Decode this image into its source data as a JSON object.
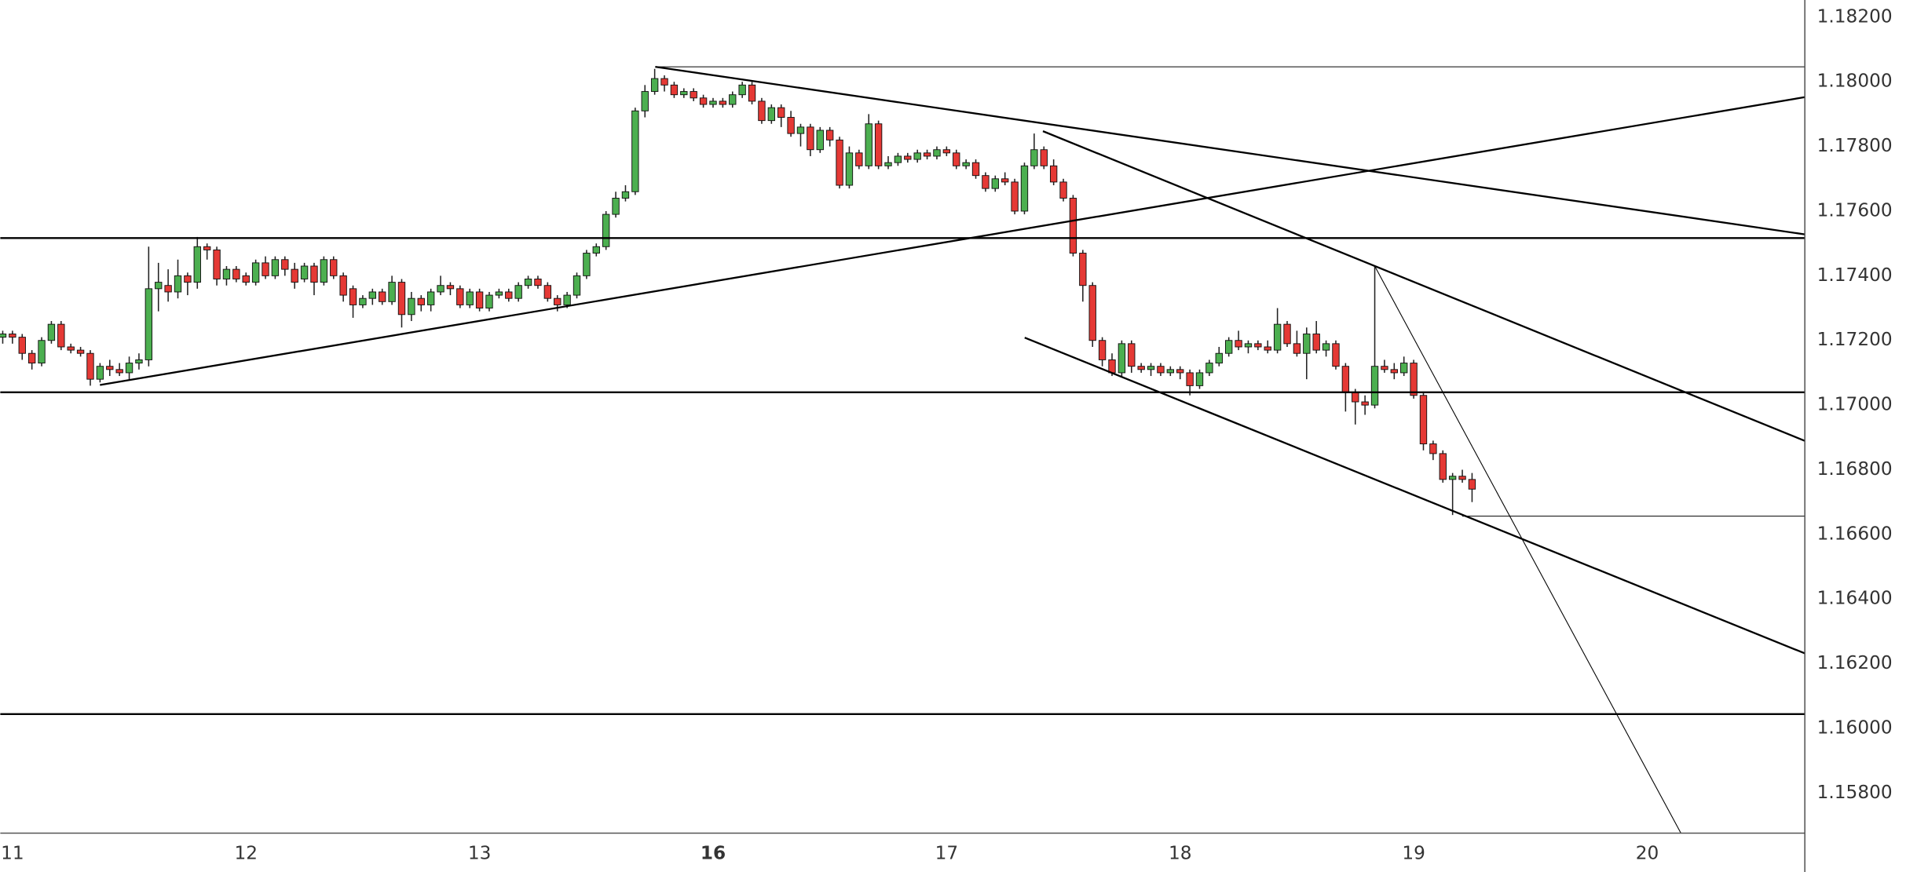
{
  "chart_data": {
    "type": "candlestick",
    "x": [
      0,
      1,
      2,
      3,
      4,
      5,
      6,
      7,
      8,
      9,
      10,
      11,
      12,
      13,
      14,
      15,
      16,
      17,
      18,
      19,
      20,
      21,
      22,
      23,
      24,
      25,
      26,
      27,
      28,
      29,
      30,
      31,
      32,
      33,
      34,
      35,
      36,
      37,
      38,
      39,
      40,
      41,
      42,
      43,
      44,
      45,
      46,
      47,
      48,
      49,
      50,
      51,
      52,
      53,
      54,
      55,
      56,
      57,
      58,
      59,
      60,
      61,
      62,
      63,
      64,
      65,
      66,
      67,
      68,
      69,
      70,
      71,
      72,
      73,
      74,
      75,
      76,
      77,
      78,
      79,
      80,
      81,
      82,
      83,
      84,
      85,
      86,
      87,
      88,
      89,
      90,
      91,
      92,
      93,
      94,
      95,
      96,
      97,
      98,
      99,
      100,
      101,
      102,
      103,
      104,
      105,
      106,
      107,
      108,
      109,
      110,
      111,
      112,
      113,
      114,
      115,
      116,
      117,
      118,
      119,
      120,
      121,
      122,
      123,
      124,
      125,
      126,
      127,
      128,
      129,
      130,
      131,
      132,
      133,
      134,
      135,
      136,
      137,
      138,
      139,
      140,
      141,
      142,
      143,
      144,
      145,
      146,
      147,
      148,
      149,
      150,
      151
    ],
    "ohlc": [
      [
        1.1721,
        1.1723,
        1.1719,
        1.1722
      ],
      [
        1.1722,
        1.1723,
        1.1719,
        1.1721
      ],
      [
        1.1721,
        1.1722,
        1.1714,
        1.1716
      ],
      [
        1.1716,
        1.1717,
        1.1711,
        1.1713
      ],
      [
        1.1713,
        1.1721,
        1.1712,
        1.172
      ],
      [
        1.172,
        1.1726,
        1.1719,
        1.1725
      ],
      [
        1.1725,
        1.1726,
        1.1717,
        1.1718
      ],
      [
        1.1718,
        1.1719,
        1.1716,
        1.1717
      ],
      [
        1.1717,
        1.1718,
        1.1715,
        1.1716
      ],
      [
        1.1716,
        1.1717,
        1.1706,
        1.1708
      ],
      [
        1.1708,
        1.1713,
        1.1707,
        1.1712
      ],
      [
        1.1712,
        1.1714,
        1.1709,
        1.1711
      ],
      [
        1.1711,
        1.1713,
        1.1709,
        1.171
      ],
      [
        1.171,
        1.1715,
        1.1708,
        1.1713
      ],
      [
        1.1713,
        1.1716,
        1.1711,
        1.1714
      ],
      [
        1.1714,
        1.1749,
        1.1712,
        1.1736
      ],
      [
        1.1736,
        1.1744,
        1.1729,
        1.1738
      ],
      [
        1.1737,
        1.1742,
        1.1732,
        1.1735
      ],
      [
        1.1735,
        1.1745,
        1.1733,
        1.174
      ],
      [
        1.174,
        1.1741,
        1.1734,
        1.1738
      ],
      [
        1.1738,
        1.1752,
        1.1736,
        1.1749
      ],
      [
        1.1749,
        1.175,
        1.1745,
        1.1748
      ],
      [
        1.1748,
        1.1749,
        1.1737,
        1.1739
      ],
      [
        1.1739,
        1.1743,
        1.1737,
        1.1742
      ],
      [
        1.1742,
        1.1743,
        1.1738,
        1.1739
      ],
      [
        1.174,
        1.1741,
        1.1737,
        1.1738
      ],
      [
        1.1738,
        1.1745,
        1.1737,
        1.1744
      ],
      [
        1.1744,
        1.1746,
        1.1739,
        1.174
      ],
      [
        1.174,
        1.1746,
        1.1739,
        1.1745
      ],
      [
        1.1745,
        1.1746,
        1.174,
        1.1742
      ],
      [
        1.1742,
        1.1744,
        1.1736,
        1.1738
      ],
      [
        1.1739,
        1.1744,
        1.1738,
        1.1743
      ],
      [
        1.1743,
        1.1744,
        1.1734,
        1.1738
      ],
      [
        1.1738,
        1.1746,
        1.1737,
        1.1745
      ],
      [
        1.1745,
        1.1746,
        1.1739,
        1.174
      ],
      [
        1.174,
        1.1741,
        1.1732,
        1.1734
      ],
      [
        1.1736,
        1.1737,
        1.1727,
        1.1731
      ],
      [
        1.1731,
        1.1734,
        1.173,
        1.1733
      ],
      [
        1.1733,
        1.1736,
        1.1731,
        1.1735
      ],
      [
        1.1735,
        1.1736,
        1.1731,
        1.1732
      ],
      [
        1.1732,
        1.174,
        1.1731,
        1.1738
      ],
      [
        1.1738,
        1.1739,
        1.1724,
        1.1728
      ],
      [
        1.1728,
        1.1735,
        1.1726,
        1.1733
      ],
      [
        1.1733,
        1.1734,
        1.1729,
        1.1731
      ],
      [
        1.1731,
        1.1736,
        1.1729,
        1.1735
      ],
      [
        1.1735,
        1.174,
        1.1734,
        1.1737
      ],
      [
        1.1737,
        1.1738,
        1.1734,
        1.1736
      ],
      [
        1.1736,
        1.1737,
        1.173,
        1.1731
      ],
      [
        1.1731,
        1.1736,
        1.173,
        1.1735
      ],
      [
        1.1735,
        1.1736,
        1.1729,
        1.173
      ],
      [
        1.173,
        1.1735,
        1.1729,
        1.1734
      ],
      [
        1.1734,
        1.1736,
        1.1733,
        1.1735
      ],
      [
        1.1735,
        1.1736,
        1.1732,
        1.1733
      ],
      [
        1.1733,
        1.1738,
        1.1732,
        1.1737
      ],
      [
        1.1737,
        1.174,
        1.1736,
        1.1739
      ],
      [
        1.1739,
        1.174,
        1.1736,
        1.1737
      ],
      [
        1.1737,
        1.1738,
        1.1732,
        1.1733
      ],
      [
        1.1733,
        1.1734,
        1.1729,
        1.1731
      ],
      [
        1.1731,
        1.1735,
        1.173,
        1.1734
      ],
      [
        1.1734,
        1.1741,
        1.1733,
        1.174
      ],
      [
        1.174,
        1.1748,
        1.1739,
        1.1747
      ],
      [
        1.1747,
        1.175,
        1.1746,
        1.1749
      ],
      [
        1.1749,
        1.176,
        1.1748,
        1.1759
      ],
      [
        1.1759,
        1.1766,
        1.1758,
        1.1764
      ],
      [
        1.1764,
        1.1768,
        1.1763,
        1.1766
      ],
      [
        1.1766,
        1.1792,
        1.1765,
        1.1791
      ],
      [
        1.1791,
        1.1799,
        1.1789,
        1.1797
      ],
      [
        1.1797,
        1.1804,
        1.1796,
        1.1801
      ],
      [
        1.1801,
        1.1802,
        1.1797,
        1.1799
      ],
      [
        1.1799,
        1.18,
        1.1795,
        1.1796
      ],
      [
        1.1796,
        1.1798,
        1.1795,
        1.1797
      ],
      [
        1.1797,
        1.1798,
        1.1794,
        1.1795
      ],
      [
        1.1795,
        1.1796,
        1.1792,
        1.1793
      ],
      [
        1.1793,
        1.1795,
        1.1792,
        1.1794
      ],
      [
        1.1794,
        1.1795,
        1.1792,
        1.1793
      ],
      [
        1.1793,
        1.1797,
        1.1792,
        1.1796
      ],
      [
        1.1796,
        1.18,
        1.1795,
        1.1799
      ],
      [
        1.1799,
        1.18,
        1.1793,
        1.1794
      ],
      [
        1.1794,
        1.1795,
        1.1787,
        1.1788
      ],
      [
        1.1788,
        1.1793,
        1.1787,
        1.1792
      ],
      [
        1.1792,
        1.1793,
        1.1786,
        1.1789
      ],
      [
        1.1789,
        1.1791,
        1.1783,
        1.1784
      ],
      [
        1.1784,
        1.1787,
        1.178,
        1.1786
      ],
      [
        1.1786,
        1.1787,
        1.1777,
        1.1779
      ],
      [
        1.1779,
        1.1786,
        1.1778,
        1.1785
      ],
      [
        1.1785,
        1.1786,
        1.178,
        1.1782
      ],
      [
        1.1782,
        1.1783,
        1.1767,
        1.1768
      ],
      [
        1.1768,
        1.178,
        1.1767,
        1.1778
      ],
      [
        1.1778,
        1.1779,
        1.1773,
        1.1774
      ],
      [
        1.1774,
        1.179,
        1.1773,
        1.1787
      ],
      [
        1.1787,
        1.1788,
        1.1773,
        1.1774
      ],
      [
        1.1774,
        1.1777,
        1.1773,
        1.1775
      ],
      [
        1.1775,
        1.1778,
        1.1774,
        1.1777
      ],
      [
        1.1777,
        1.1778,
        1.1775,
        1.1776
      ],
      [
        1.1776,
        1.1779,
        1.1775,
        1.1778
      ],
      [
        1.1778,
        1.1779,
        1.1776,
        1.1777
      ],
      [
        1.1777,
        1.178,
        1.1776,
        1.1779
      ],
      [
        1.1779,
        1.178,
        1.1777,
        1.1778
      ],
      [
        1.1778,
        1.1779,
        1.1773,
        1.1774
      ],
      [
        1.1774,
        1.1776,
        1.1773,
        1.1775
      ],
      [
        1.1775,
        1.1776,
        1.177,
        1.1771
      ],
      [
        1.1771,
        1.1772,
        1.1766,
        1.1767
      ],
      [
        1.1767,
        1.1771,
        1.1766,
        1.177
      ],
      [
        1.177,
        1.1772,
        1.1768,
        1.1769
      ],
      [
        1.1769,
        1.177,
        1.1759,
        1.176
      ],
      [
        1.176,
        1.1775,
        1.1759,
        1.1774
      ],
      [
        1.1774,
        1.1784,
        1.1773,
        1.1779
      ],
      [
        1.1779,
        1.178,
        1.1773,
        1.1774
      ],
      [
        1.1774,
        1.1776,
        1.1768,
        1.1769
      ],
      [
        1.1769,
        1.177,
        1.1763,
        1.1764
      ],
      [
        1.1764,
        1.1765,
        1.1746,
        1.1747
      ],
      [
        1.1747,
        1.1748,
        1.1732,
        1.1737
      ],
      [
        1.1737,
        1.1738,
        1.1718,
        1.172
      ],
      [
        1.172,
        1.1721,
        1.1712,
        1.1714
      ],
      [
        1.1714,
        1.1716,
        1.1709,
        1.171
      ],
      [
        1.171,
        1.172,
        1.1709,
        1.1719
      ],
      [
        1.1719,
        1.172,
        1.171,
        1.1712
      ],
      [
        1.1712,
        1.1713,
        1.171,
        1.1711
      ],
      [
        1.1711,
        1.1713,
        1.1709,
        1.1712
      ],
      [
        1.1712,
        1.1713,
        1.1709,
        1.171
      ],
      [
        1.171,
        1.1712,
        1.1709,
        1.1711
      ],
      [
        1.1711,
        1.1712,
        1.1708,
        1.171
      ],
      [
        1.171,
        1.1711,
        1.1703,
        1.1706
      ],
      [
        1.1706,
        1.1711,
        1.1705,
        1.171
      ],
      [
        1.171,
        1.1714,
        1.1709,
        1.1713
      ],
      [
        1.1713,
        1.1718,
        1.1712,
        1.1716
      ],
      [
        1.1716,
        1.1721,
        1.1715,
        1.172
      ],
      [
        1.172,
        1.1723,
        1.1717,
        1.1718
      ],
      [
        1.1718,
        1.172,
        1.1716,
        1.1719
      ],
      [
        1.1719,
        1.172,
        1.1717,
        1.1718
      ],
      [
        1.1718,
        1.172,
        1.1716,
        1.1717
      ],
      [
        1.1717,
        1.173,
        1.1716,
        1.1725
      ],
      [
        1.1725,
        1.1726,
        1.1718,
        1.1719
      ],
      [
        1.1719,
        1.1723,
        1.1715,
        1.1716
      ],
      [
        1.1716,
        1.1724,
        1.1708,
        1.1722
      ],
      [
        1.1722,
        1.1726,
        1.1716,
        1.1717
      ],
      [
        1.1717,
        1.172,
        1.1715,
        1.1719
      ],
      [
        1.1719,
        1.172,
        1.1711,
        1.1712
      ],
      [
        1.1712,
        1.1713,
        1.1698,
        1.1704
      ],
      [
        1.1704,
        1.1705,
        1.1694,
        1.1701
      ],
      [
        1.1701,
        1.1703,
        1.1697,
        1.17
      ],
      [
        1.17,
        1.1743,
        1.1699,
        1.1712
      ],
      [
        1.1712,
        1.1714,
        1.171,
        1.1711
      ],
      [
        1.1711,
        1.1713,
        1.1708,
        1.171
      ],
      [
        1.171,
        1.1715,
        1.1709,
        1.1713
      ],
      [
        1.1713,
        1.1714,
        1.1702,
        1.1703
      ],
      [
        1.1703,
        1.1704,
        1.1686,
        1.1688
      ],
      [
        1.1688,
        1.1689,
        1.1683,
        1.1685
      ],
      [
        1.1685,
        1.1686,
        1.1676,
        1.1677
      ],
      [
        1.1677,
        1.1679,
        1.1666,
        1.1678
      ],
      [
        1.1678,
        1.168,
        1.1676,
        1.1677
      ],
      [
        1.1677,
        1.1679,
        1.167,
        1.1674
      ]
    ],
    "up_color": "#4caf50",
    "down_color": "#e53935",
    "wick_color": "#222222",
    "xlim": [
      -0.25,
      185.2
    ],
    "xticks": [
      {
        "value": 1,
        "label": "11"
      },
      {
        "value": 25,
        "label": "12"
      },
      {
        "value": 49,
        "label": "13"
      },
      {
        "value": 73,
        "label": "16"
      },
      {
        "value": 97,
        "label": "17"
      },
      {
        "value": 121,
        "label": "18"
      },
      {
        "value": 145,
        "label": "19"
      },
      {
        "value": 169,
        "label": "20"
      }
    ],
    "ylim": [
      1.15676,
      1.18253
    ],
    "yticks": [
      {
        "value": 1.182,
        "label": "1.18200"
      },
      {
        "value": 1.18,
        "label": "1.18000"
      },
      {
        "value": 1.178,
        "label": "1.17800"
      },
      {
        "value": 1.176,
        "label": "1.17600"
      },
      {
        "value": 1.174,
        "label": "1.17400"
      },
      {
        "value": 1.172,
        "label": "1.17200"
      },
      {
        "value": 1.17,
        "label": "1.17000"
      },
      {
        "value": 1.168,
        "label": "1.16800"
      },
      {
        "value": 1.166,
        "label": "1.16600"
      },
      {
        "value": 1.164,
        "label": "1.16400"
      },
      {
        "value": 1.162,
        "label": "1.16200"
      },
      {
        "value": 1.16,
        "label": "1.16000"
      },
      {
        "value": 1.158,
        "label": "1.15800"
      }
    ],
    "grid": false
  }
}
